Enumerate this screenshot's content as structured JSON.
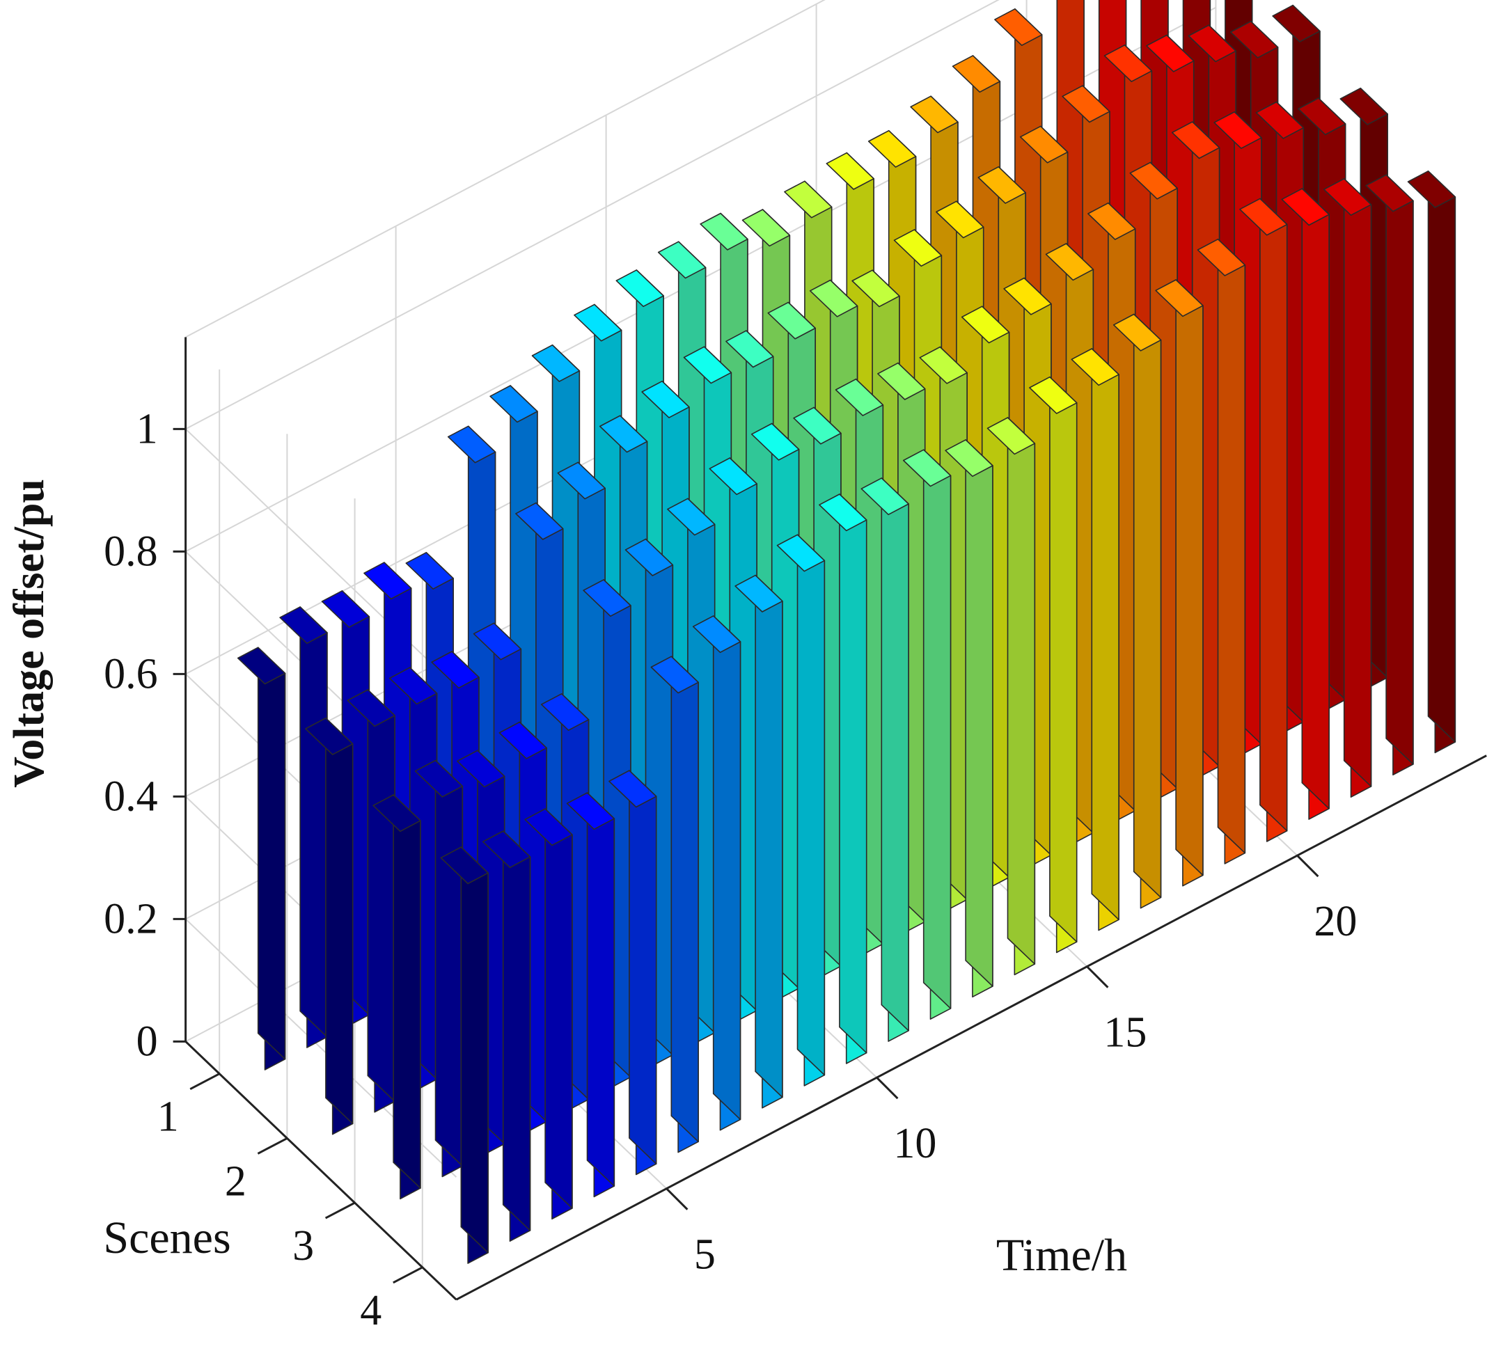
{
  "chart_data": {
    "type": "bar3d",
    "xlabel": "Time/h",
    "ylabel": "Scenes",
    "zlabel": "Voltage offset/pu",
    "x_ticks": [
      "5",
      "10",
      "15",
      "20"
    ],
    "y_ticks": [
      "1",
      "2",
      "3",
      "4"
    ],
    "z_ticks": [
      "0",
      "0.2",
      "0.4",
      "0.6",
      "0.8",
      "1"
    ],
    "zlim": [
      0,
      1.15
    ],
    "grid": true,
    "times": [
      1,
      2,
      3,
      4,
      5,
      6,
      7,
      8,
      9,
      10,
      11,
      12,
      13,
      14,
      15,
      16,
      17,
      18,
      19,
      20,
      21,
      22,
      23,
      24
    ],
    "colormap": "jet",
    "series": [
      {
        "name": "1",
        "values": [
          0.63,
          0.66,
          0.65,
          0.66,
          0.64,
          0.81,
          0.84,
          0.87,
          0.9,
          0.92,
          0.93,
          0.94,
          0.91,
          0.92,
          0.93,
          0.93,
          0.95,
          0.98,
          1.02,
          1.06,
          1.03,
          1.01,
          0.97,
          0.96
        ]
      },
      {
        "name": "2",
        "values": [
          0.62,
          0.63,
          0.63,
          0.62,
          0.63,
          0.79,
          0.82,
          0.86,
          0.88,
          0.9,
          0.89,
          0.9,
          0.9,
          0.88,
          0.91,
          0.92,
          0.94,
          0.97,
          1.0,
          1.03,
          1.01,
          0.99,
          0.96,
          0.95
        ]
      },
      {
        "name": "3",
        "values": [
          0.6,
          0.62,
          0.6,
          0.61,
          0.62,
          0.77,
          0.8,
          0.83,
          0.86,
          0.88,
          0.87,
          0.88,
          0.87,
          0.86,
          0.89,
          0.9,
          0.92,
          0.95,
          0.98,
          1.01,
          0.99,
          0.97,
          0.94,
          0.92
        ]
      },
      {
        "name": "4",
        "values": [
          0.62,
          0.61,
          0.61,
          0.6,
          0.6,
          0.75,
          0.78,
          0.81,
          0.84,
          0.87,
          0.86,
          0.87,
          0.85,
          0.85,
          0.88,
          0.89,
          0.91,
          0.93,
          0.96,
          0.99,
          0.97,
          0.95,
          0.92,
          0.89
        ]
      }
    ]
  }
}
